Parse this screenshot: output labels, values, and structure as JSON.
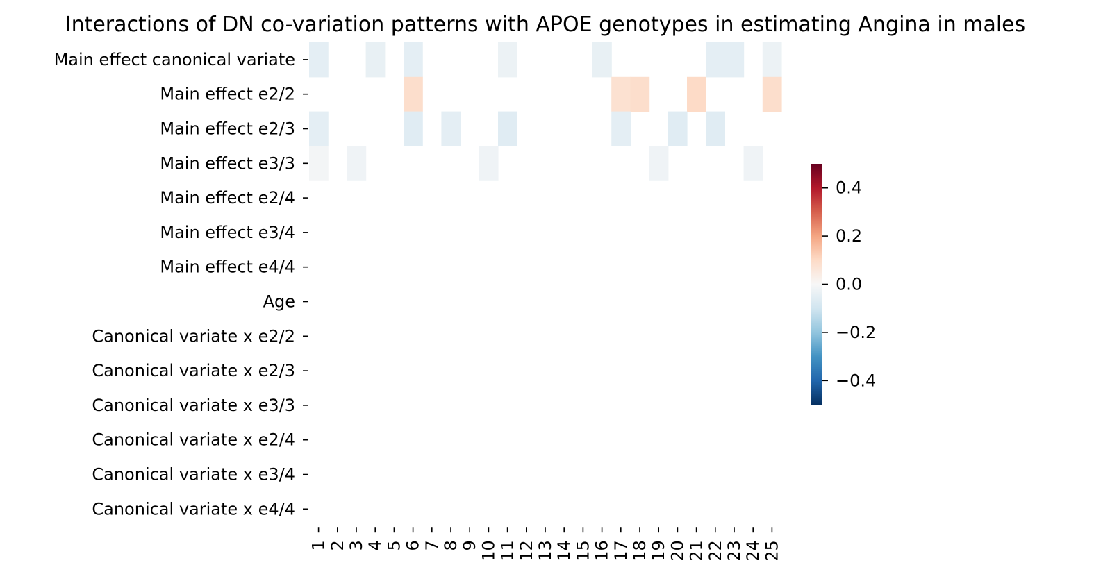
{
  "chart_data": {
    "type": "heatmap",
    "title": "Interactions of DN co-variation patterns with APOE genotypes in estimating Angina in males",
    "xlabel": "",
    "ylabel": "",
    "x_categories": [
      "1",
      "2",
      "3",
      "4",
      "5",
      "6",
      "7",
      "8",
      "9",
      "10",
      "11",
      "12",
      "13",
      "14",
      "15",
      "16",
      "17",
      "18",
      "19",
      "20",
      "21",
      "22",
      "23",
      "24",
      "25"
    ],
    "y_categories": [
      "Main effect canonical variate",
      "Main effect e2/2",
      "Main effect e2/3",
      "Main effect e3/3",
      "Main effect e2/4",
      "Main effect e3/4",
      "Main effect e4/4",
      "Age",
      "Canonical variate x e2/2",
      "Canonical variate x e2/3",
      "Canonical variate x e3/3",
      "Canonical variate x e2/4",
      "Canonical variate x e3/4",
      "Canonical variate x e4/4"
    ],
    "cells": [
      {
        "row": "Main effect canonical variate",
        "col": "1",
        "value": -0.05
      },
      {
        "row": "Main effect canonical variate",
        "col": "4",
        "value": -0.04
      },
      {
        "row": "Main effect canonical variate",
        "col": "6",
        "value": -0.05
      },
      {
        "row": "Main effect canonical variate",
        "col": "11",
        "value": -0.03
      },
      {
        "row": "Main effect canonical variate",
        "col": "16",
        "value": -0.04
      },
      {
        "row": "Main effect canonical variate",
        "col": "22",
        "value": -0.05
      },
      {
        "row": "Main effect canonical variate",
        "col": "23",
        "value": -0.05
      },
      {
        "row": "Main effect canonical variate",
        "col": "25",
        "value": -0.03
      },
      {
        "row": "Main effect e2/2",
        "col": "6",
        "value": 0.09
      },
      {
        "row": "Main effect e2/2",
        "col": "17",
        "value": 0.08
      },
      {
        "row": "Main effect e2/2",
        "col": "18",
        "value": 0.09
      },
      {
        "row": "Main effect e2/2",
        "col": "21",
        "value": 0.1
      },
      {
        "row": "Main effect e2/2",
        "col": "25",
        "value": 0.09
      },
      {
        "row": "Main effect e2/3",
        "col": "1",
        "value": -0.05
      },
      {
        "row": "Main effect e2/3",
        "col": "6",
        "value": -0.06
      },
      {
        "row": "Main effect e2/3",
        "col": "8",
        "value": -0.05
      },
      {
        "row": "Main effect e2/3",
        "col": "11",
        "value": -0.06
      },
      {
        "row": "Main effect e2/3",
        "col": "17",
        "value": -0.05
      },
      {
        "row": "Main effect e2/3",
        "col": "20",
        "value": -0.06
      },
      {
        "row": "Main effect e2/3",
        "col": "22",
        "value": -0.06
      },
      {
        "row": "Main effect e3/3",
        "col": "1",
        "value": -0.01
      },
      {
        "row": "Main effect e3/3",
        "col": "3",
        "value": -0.02
      },
      {
        "row": "Main effect e3/3",
        "col": "10",
        "value": -0.02
      },
      {
        "row": "Main effect e3/3",
        "col": "19",
        "value": -0.02
      },
      {
        "row": "Main effect e3/3",
        "col": "24",
        "value": -0.02
      }
    ],
    "colorbar": {
      "colormap": "RdBu_r",
      "min": -0.5,
      "max": 0.5,
      "ticks": [
        0.4,
        0.2,
        0.0,
        -0.2,
        -0.4
      ],
      "tick_labels": [
        "0.4",
        "0.2",
        "0.0",
        "−0.2",
        "−0.4"
      ],
      "colors": [
        "#053061",
        "#2166ac",
        "#4393c3",
        "#92c5de",
        "#d1e5f0",
        "#f7f7f7",
        "#fddbc7",
        "#f4a582",
        "#d6604d",
        "#b2182b",
        "#67001f"
      ]
    }
  }
}
